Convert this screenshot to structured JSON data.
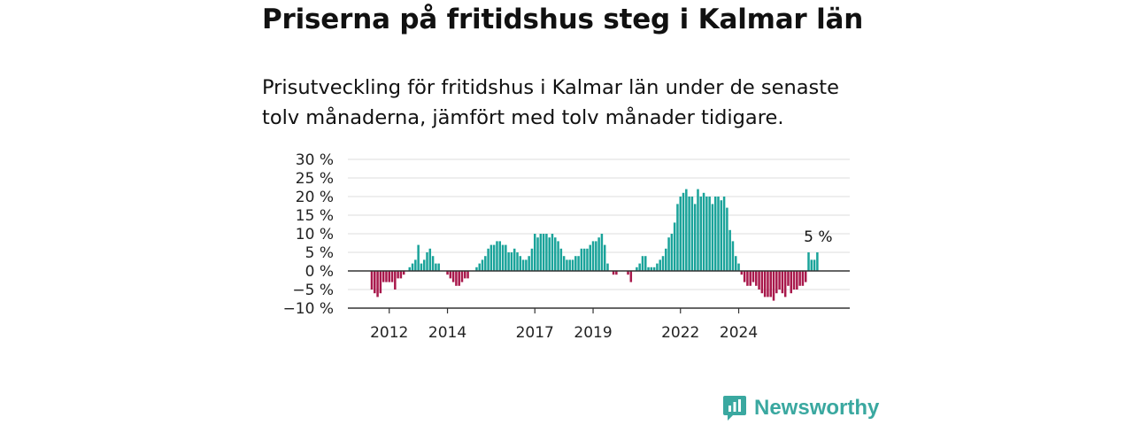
{
  "title": "Priserna på fritidshus steg i Kalmar län",
  "subtitle": "Prisutveckling för fritidshus i Kalmar län under de senaste tolv månaderna, jämfört med tolv månader tidigare.",
  "brand": "Newsworthy",
  "colors": {
    "positive": "#1aa39a",
    "negative": "#a8184b",
    "grid": "#dddddd",
    "baseline": "#333333"
  },
  "chart_data": {
    "type": "bar",
    "ylim": [
      -10,
      30
    ],
    "yticks": [
      "30 %",
      "25 %",
      "20 %",
      "15 %",
      "10 %",
      "5 %",
      "0 %",
      "−5 %",
      "−10 %"
    ],
    "ytick_values": [
      30,
      25,
      20,
      15,
      10,
      5,
      0,
      -5,
      -10
    ],
    "xtick_labels": [
      "2012",
      "2014",
      "2017",
      "2019",
      "2022",
      "2024"
    ],
    "xtick_index": [
      6,
      26,
      56,
      76,
      106,
      126
    ],
    "annotation": "5 %",
    "values": [
      -5,
      -6,
      -7,
      -6,
      -3,
      -3,
      -3,
      -3,
      -5,
      -2,
      -2,
      -1,
      0,
      1,
      2,
      3,
      7,
      2,
      3,
      5,
      6,
      4,
      2,
      2,
      0,
      0,
      -1,
      -2,
      -3,
      -4,
      -4,
      -3,
      -2,
      -2,
      0,
      0,
      1,
      2,
      3,
      4,
      6,
      7,
      7,
      8,
      8,
      7,
      7,
      5,
      5,
      6,
      5,
      4,
      3,
      3,
      4,
      6,
      10,
      9,
      10,
      10,
      10,
      9,
      10,
      9,
      8,
      6,
      4,
      3,
      3,
      3,
      4,
      4,
      6,
      6,
      6,
      7,
      8,
      8,
      9,
      10,
      7,
      2,
      0,
      -1,
      -1,
      0,
      0,
      0,
      -1,
      -3,
      0,
      1,
      2,
      4,
      4,
      1,
      1,
      1,
      2,
      3,
      4,
      6,
      9,
      10,
      13,
      18,
      20,
      21,
      22,
      20,
      20,
      18,
      22,
      20,
      21,
      20,
      20,
      18,
      20,
      20,
      19,
      20,
      17,
      11,
      8,
      4,
      2,
      -1,
      -3,
      -4,
      -4,
      -3,
      -4,
      -5,
      -6,
      -7,
      -7,
      -7,
      -8,
      -6,
      -5,
      -6,
      -7,
      -4,
      -6,
      -5,
      -5,
      -4,
      -4,
      -3,
      5,
      3,
      3,
      5
    ]
  }
}
